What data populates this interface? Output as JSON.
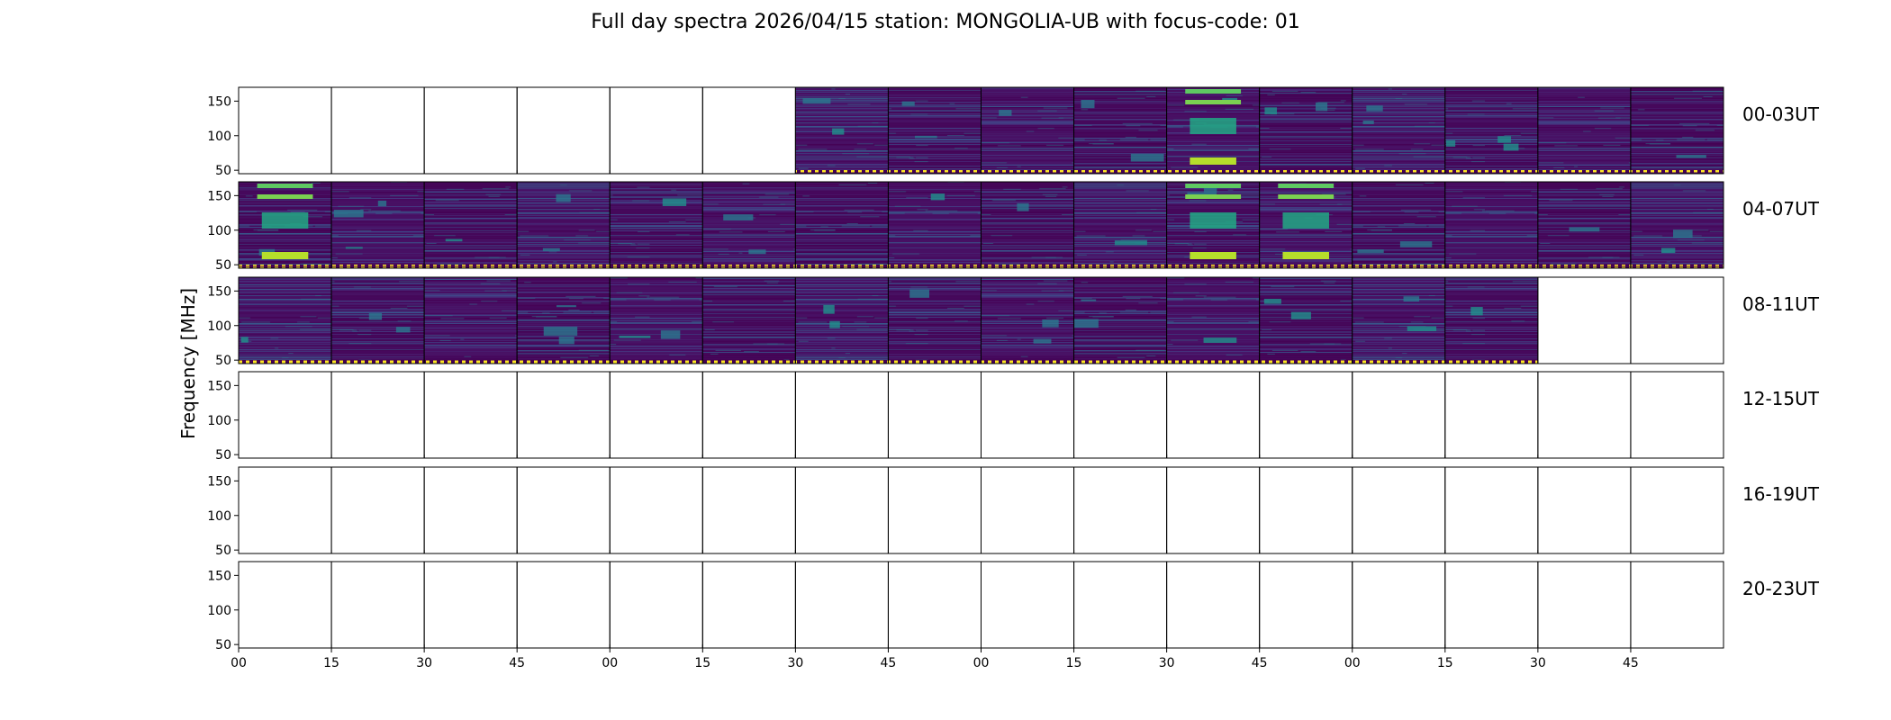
{
  "chart_data": {
    "type": "heatmap",
    "title": "Full day spectra 2026/04/15 station: MONGOLIA-UB with focus-code: 01",
    "ylabel": "Frequency [MHz]",
    "y_ticks": [
      "150",
      "100",
      "50"
    ],
    "ylim": [
      45,
      170
    ],
    "x_tick_labels": [
      "00",
      "15",
      "30",
      "45",
      "00",
      "15",
      "30",
      "45",
      "00",
      "15",
      "30",
      "45",
      "00",
      "15",
      "30",
      "45"
    ],
    "colormap": "viridis",
    "colors": {
      "low": "#440154",
      "mid": "#3b528b",
      "teal": "#21918c",
      "green": "#5ec962",
      "high": "#fde725"
    },
    "rows": [
      {
        "label": "00-03UT",
        "filled": [
          false,
          false,
          false,
          false,
          false,
          false,
          true,
          true,
          true,
          true,
          true,
          true,
          true,
          true,
          true,
          true
        ]
      },
      {
        "label": "04-07UT",
        "filled": [
          true,
          true,
          true,
          true,
          true,
          true,
          true,
          true,
          true,
          true,
          true,
          true,
          true,
          true,
          true,
          true
        ]
      },
      {
        "label": "08-11UT",
        "filled": [
          true,
          true,
          true,
          true,
          true,
          true,
          true,
          true,
          true,
          true,
          true,
          true,
          true,
          true,
          false,
          false
        ]
      },
      {
        "label": "12-15UT",
        "filled": [
          false,
          false,
          false,
          false,
          false,
          false,
          false,
          false,
          false,
          false,
          false,
          false,
          false,
          false,
          false,
          false
        ]
      },
      {
        "label": "16-19UT",
        "filled": [
          false,
          false,
          false,
          false,
          false,
          false,
          false,
          false,
          false,
          false,
          false,
          false,
          false,
          false,
          false,
          false
        ]
      },
      {
        "label": "20-23UT",
        "filled": [
          false,
          false,
          false,
          false,
          false,
          false,
          false,
          false,
          false,
          false,
          false,
          false,
          false,
          false,
          false,
          false
        ]
      }
    ]
  }
}
